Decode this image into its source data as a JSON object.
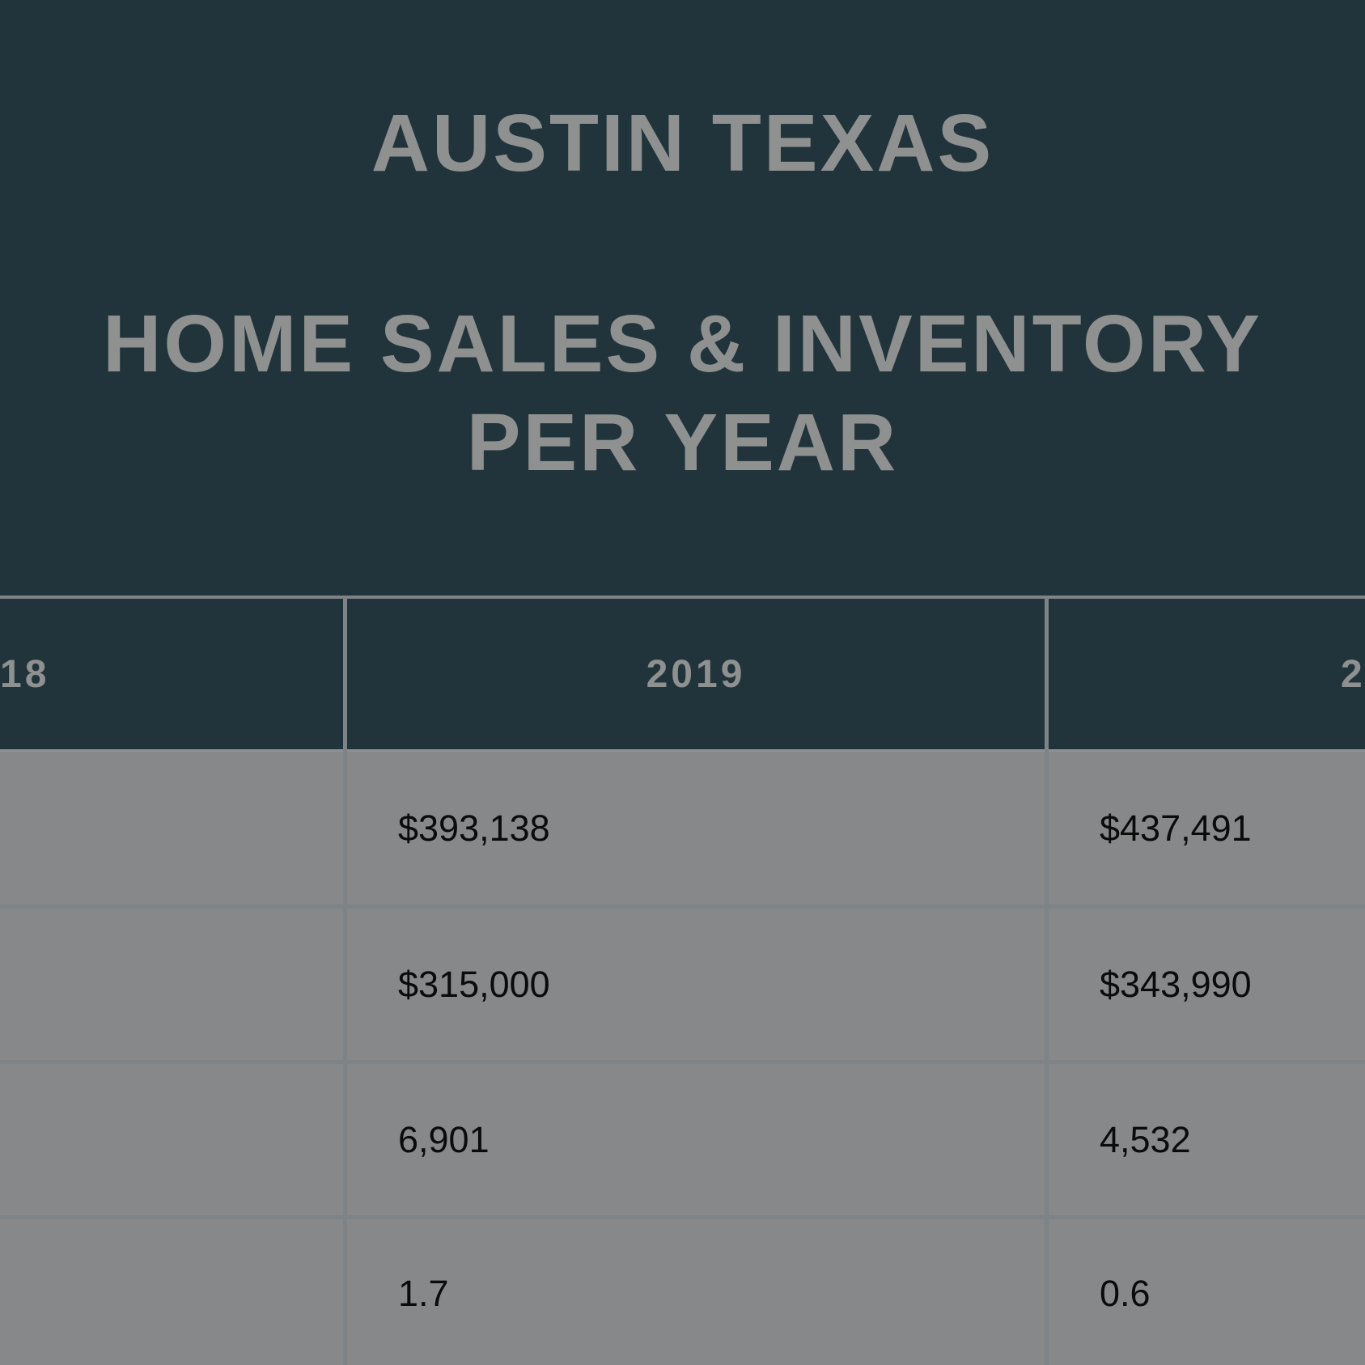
{
  "title": {
    "line1": "AUSTIN TEXAS",
    "line2": "HOME SALES & INVENTORY",
    "line3": "PER YEAR"
  },
  "table": {
    "headers": [
      "18",
      "2019",
      "2"
    ],
    "rows": [
      {
        "col_2019": "$393,138",
        "col_2020": "$437,491"
      },
      {
        "col_2019": "$315,000",
        "col_2020": "$343,990"
      },
      {
        "col_2019": "6,901",
        "col_2020": "4,532"
      },
      {
        "col_2019": "1.7",
        "col_2020": "0.6"
      }
    ]
  },
  "colors": {
    "header_bg": "#21343b",
    "title_text": "#8f9190",
    "body_bg": "#878889",
    "grid_line": "#7d8386",
    "cell_text": "#0b0b0b"
  }
}
